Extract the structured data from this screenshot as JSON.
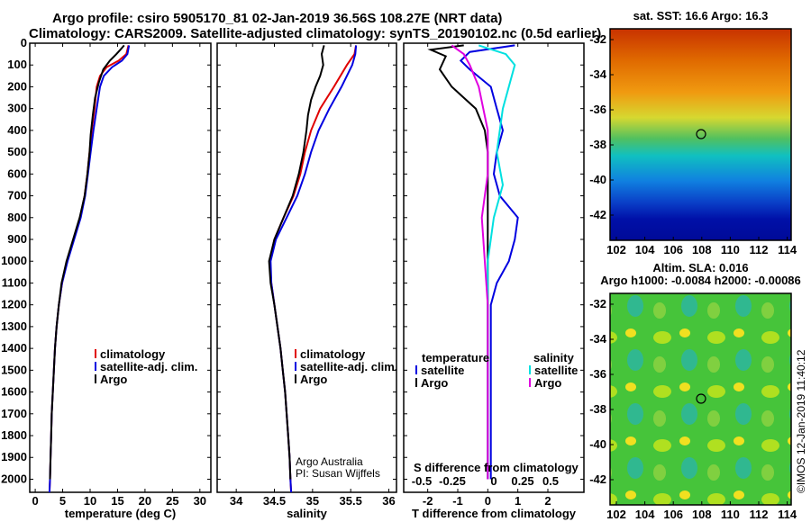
{
  "header": {
    "line1": "Argo profile: csiro 5905170_81 02-Jan-2019 36.56S 108.27E (NRT data)",
    "line2": "Climatology: CARS2009. Satellite-adjusted climatology: synTS_20190102.nc (0.5d earlier)"
  },
  "colors": {
    "climatology": "#e00000",
    "satellite": "#0000e0",
    "argo": "#000000",
    "salinity_sat": "#00e0e0",
    "salinity_argo": "#e000e0"
  },
  "depth_ticks": [
    0,
    100,
    200,
    300,
    400,
    500,
    600,
    700,
    800,
    900,
    1000,
    1100,
    1200,
    1300,
    1400,
    1500,
    1600,
    1700,
    1800,
    1900,
    2000
  ],
  "chart_data": [
    {
      "type": "line",
      "panel": "temperature",
      "xlabel": "temperature (deg C)",
      "xlim": [
        -1,
        32
      ],
      "ylim": [
        2060,
        0
      ],
      "xticks": [
        0,
        5,
        10,
        15,
        20,
        25,
        30
      ],
      "legend": [
        "climatology",
        "satellite-adj. clim.",
        "Argo"
      ],
      "series": [
        {
          "name": "climatology",
          "points": [
            [
              17.0,
              10
            ],
            [
              16.6,
              50
            ],
            [
              15.2,
              80
            ],
            [
              13.0,
              110
            ],
            [
              11.8,
              150
            ],
            [
              11.2,
              200
            ],
            [
              10.8,
              300
            ],
            [
              10.3,
              400
            ],
            [
              9.9,
              500
            ],
            [
              9.5,
              600
            ],
            [
              9.0,
              700
            ],
            [
              8.2,
              800
            ],
            [
              7.0,
              900
            ],
            [
              5.8,
              1000
            ],
            [
              4.9,
              1100
            ],
            [
              4.3,
              1200
            ],
            [
              3.9,
              1300
            ],
            [
              3.6,
              1400
            ],
            [
              3.4,
              1500
            ],
            [
              3.2,
              1600
            ],
            [
              3.0,
              1700
            ],
            [
              2.9,
              1800
            ],
            [
              2.8,
              1900
            ],
            [
              2.7,
              2000
            ],
            [
              2.6,
              2060
            ]
          ]
        },
        {
          "name": "satellite-adj. clim.",
          "points": [
            [
              17.1,
              10
            ],
            [
              16.8,
              50
            ],
            [
              15.8,
              80
            ],
            [
              14.0,
              110
            ],
            [
              12.5,
              150
            ],
            [
              11.8,
              200
            ],
            [
              11.2,
              300
            ],
            [
              10.6,
              400
            ],
            [
              10.1,
              500
            ],
            [
              9.6,
              600
            ],
            [
              9.1,
              700
            ],
            [
              8.3,
              800
            ],
            [
              7.1,
              900
            ],
            [
              5.9,
              1000
            ],
            [
              4.9,
              1100
            ],
            [
              4.3,
              1200
            ],
            [
              3.9,
              1300
            ],
            [
              3.6,
              1400
            ],
            [
              3.4,
              1500
            ],
            [
              3.2,
              1600
            ],
            [
              3.0,
              1700
            ],
            [
              2.9,
              1800
            ],
            [
              2.8,
              1900
            ],
            [
              2.7,
              2000
            ],
            [
              2.6,
              2060
            ]
          ]
        },
        {
          "name": "Argo",
          "points": [
            [
              16.2,
              10
            ],
            [
              15.5,
              30
            ],
            [
              14.8,
              50
            ],
            [
              13.6,
              80
            ],
            [
              12.4,
              120
            ],
            [
              11.6,
              180
            ],
            [
              10.9,
              250
            ],
            [
              10.5,
              330
            ],
            [
              10.1,
              420
            ],
            [
              9.9,
              500
            ],
            [
              9.5,
              600
            ],
            [
              9.0,
              700
            ],
            [
              8.1,
              800
            ],
            [
              6.9,
              900
            ],
            [
              5.7,
              1000
            ],
            [
              4.8,
              1100
            ],
            [
              4.3,
              1200
            ],
            [
              3.9,
              1300
            ],
            [
              3.6,
              1400
            ],
            [
              3.4,
              1500
            ],
            [
              3.2,
              1600
            ],
            [
              3.0,
              1700
            ],
            [
              2.9,
              1800
            ],
            [
              2.8,
              1900
            ],
            [
              2.7,
              2000
            ]
          ]
        }
      ]
    },
    {
      "type": "line",
      "panel": "salinity",
      "xlabel": "salinity",
      "xlim": [
        33.75,
        36.1
      ],
      "ylim": [
        2060,
        0
      ],
      "xticks": [
        34,
        34.5,
        35,
        35.5,
        36
      ],
      "legend": [
        "climatology",
        "satellite-adj. clim.",
        "Argo"
      ],
      "annotations": [
        "Argo Australia",
        "PI: Susan Wijffels"
      ],
      "series": [
        {
          "name": "climatology",
          "points": [
            [
              35.57,
              10
            ],
            [
              35.55,
              50
            ],
            [
              35.45,
              100
            ],
            [
              35.28,
              200
            ],
            [
              35.1,
              300
            ],
            [
              34.98,
              400
            ],
            [
              34.9,
              500
            ],
            [
              34.84,
              600
            ],
            [
              34.75,
              700
            ],
            [
              34.62,
              800
            ],
            [
              34.5,
              900
            ],
            [
              34.44,
              1000
            ],
            [
              34.46,
              1100
            ],
            [
              34.5,
              1200
            ],
            [
              34.54,
              1300
            ],
            [
              34.58,
              1400
            ],
            [
              34.61,
              1500
            ],
            [
              34.64,
              1600
            ],
            [
              34.66,
              1700
            ],
            [
              34.68,
              1800
            ],
            [
              34.7,
              1900
            ],
            [
              34.71,
              2000
            ],
            [
              34.72,
              2060
            ]
          ]
        },
        {
          "name": "satellite-adj. clim.",
          "points": [
            [
              35.57,
              10
            ],
            [
              35.56,
              50
            ],
            [
              35.52,
              100
            ],
            [
              35.38,
              200
            ],
            [
              35.22,
              300
            ],
            [
              35.08,
              400
            ],
            [
              34.98,
              500
            ],
            [
              34.9,
              600
            ],
            [
              34.8,
              700
            ],
            [
              34.66,
              800
            ],
            [
              34.52,
              900
            ],
            [
              34.45,
              1000
            ],
            [
              34.46,
              1100
            ],
            [
              34.5,
              1200
            ],
            [
              34.54,
              1300
            ],
            [
              34.58,
              1400
            ],
            [
              34.61,
              1500
            ],
            [
              34.64,
              1600
            ],
            [
              34.66,
              1700
            ],
            [
              34.68,
              1800
            ],
            [
              34.7,
              1900
            ],
            [
              34.71,
              2000
            ],
            [
              34.72,
              2060
            ]
          ]
        },
        {
          "name": "Argo",
          "points": [
            [
              35.15,
              10
            ],
            [
              35.12,
              50
            ],
            [
              35.14,
              100
            ],
            [
              35.1,
              150
            ],
            [
              35.04,
              200
            ],
            [
              34.98,
              260
            ],
            [
              34.94,
              330
            ],
            [
              34.92,
              400
            ],
            [
              34.88,
              500
            ],
            [
              34.82,
              600
            ],
            [
              34.74,
              700
            ],
            [
              34.62,
              800
            ],
            [
              34.5,
              900
            ],
            [
              34.43,
              1000
            ],
            [
              34.45,
              1100
            ],
            [
              34.5,
              1200
            ],
            [
              34.54,
              1300
            ],
            [
              34.58,
              1400
            ],
            [
              34.61,
              1500
            ],
            [
              34.64,
              1600
            ],
            [
              34.66,
              1700
            ],
            [
              34.68,
              1800
            ],
            [
              34.7,
              1900
            ],
            [
              34.71,
              2000
            ]
          ]
        }
      ]
    },
    {
      "type": "line",
      "panel": "differences",
      "xlabel": "T difference from climatology",
      "xlabel2": "S difference from climatology",
      "xlim": [
        -2.8,
        3.2
      ],
      "ylim": [
        2060,
        0
      ],
      "xticks": [
        -2,
        -1,
        0,
        1,
        2
      ],
      "xticks2_labels": [
        "-0.5",
        "-0.25",
        "0",
        "0.25",
        "0.5"
      ],
      "legend_left_title": "temperature",
      "legend_right_title": "salinity",
      "legend": [
        "satellite",
        "Argo",
        "satellite",
        "Argo"
      ],
      "series": [
        {
          "name": "satellite",
          "group": "temperature",
          "points": [
            [
              0.9,
              10
            ],
            [
              -0.6,
              40
            ],
            [
              -0.9,
              80
            ],
            [
              -0.6,
              120
            ],
            [
              0.1,
              200
            ],
            [
              0.3,
              300
            ],
            [
              0.5,
              400
            ],
            [
              0.3,
              500
            ],
            [
              0.2,
              600
            ],
            [
              0.4,
              700
            ],
            [
              1.0,
              800
            ],
            [
              0.9,
              900
            ],
            [
              0.7,
              1000
            ],
            [
              0.3,
              1100
            ],
            [
              0.1,
              1200
            ],
            [
              0.1,
              1500
            ],
            [
              0.1,
              2000
            ]
          ]
        },
        {
          "name": "Argo",
          "group": "temperature",
          "points": [
            [
              -0.8,
              10
            ],
            [
              -1.9,
              30
            ],
            [
              -1.4,
              60
            ],
            [
              -1.6,
              120
            ],
            [
              -1.2,
              200
            ],
            [
              -0.4,
              300
            ],
            [
              -0.1,
              400
            ],
            [
              0.0,
              500
            ],
            [
              0.0,
              700
            ],
            [
              0.0,
              900
            ],
            [
              0.0,
              1200
            ],
            [
              0.0,
              1500
            ],
            [
              0.0,
              2000
            ]
          ]
        },
        {
          "name": "satellite",
          "group": "salinity",
          "points": [
            [
              -0.3,
              10
            ],
            [
              0.6,
              50
            ],
            [
              0.9,
              100
            ],
            [
              0.5,
              300
            ],
            [
              0.3,
              500
            ],
            [
              0.5,
              650
            ],
            [
              0.2,
              800
            ],
            [
              0.0,
              1000
            ],
            [
              0.0,
              1500
            ],
            [
              0.0,
              2000
            ]
          ]
        },
        {
          "name": "Argo",
          "group": "salinity",
          "points": [
            [
              -1.2,
              10
            ],
            [
              -0.8,
              50
            ],
            [
              -0.6,
              100
            ],
            [
              -0.3,
              200
            ],
            [
              0.0,
              400
            ],
            [
              0.0,
              600
            ],
            [
              -0.2,
              800
            ],
            [
              -0.1,
              1000
            ],
            [
              0.0,
              1200
            ],
            [
              0.0,
              2000
            ]
          ]
        }
      ]
    }
  ],
  "maps": {
    "sst": {
      "title": "sat. SST: 16.6 Argo: 16.3",
      "yticks": [
        "-32",
        "-34",
        "-36",
        "-38",
        "-40",
        "-42"
      ],
      "xticks": [
        "102",
        "104",
        "106",
        "108",
        "110",
        "112",
        "114"
      ]
    },
    "sla": {
      "title1": "Altim. SLA: 0.016",
      "title2": "Argo h1000: -0.0084 h2000: -0.00086",
      "yticks": [
        "-32",
        "-34",
        "-36",
        "-38",
        "-40",
        "-42"
      ],
      "xticks": [
        "102",
        "104",
        "106",
        "108",
        "110",
        "112",
        "114"
      ]
    },
    "stamp": "©IMOS 12-Jan-2019 11:40:12"
  }
}
